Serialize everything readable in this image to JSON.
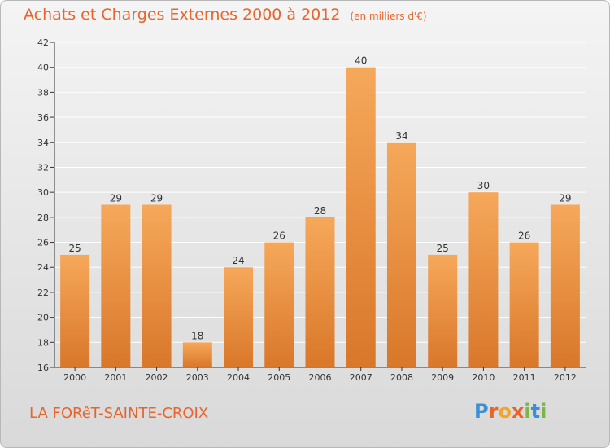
{
  "header": {
    "title": "Achats et Charges Externes 2000 à 2012",
    "unit": "(en milliers d'€)"
  },
  "footer": {
    "commune": "LA FORêT-SAINTE-CROIX",
    "logo": {
      "text": "Proxiti",
      "letter_colors": [
        "#3a8fd6",
        "#e8642a",
        "#f2a42e",
        "#e8642a",
        "#7ab648",
        "#3a8fd6",
        "#7ab648"
      ]
    }
  },
  "colors": {
    "title": "#e8642a",
    "bar_light": "#f6a85a",
    "bar_dark": "#d9772a",
    "axis": "#333333",
    "grid": "#ffffff"
  },
  "chart_data": {
    "type": "bar",
    "title": "Achats et Charges Externes 2000 à 2012",
    "subtitle": "(en milliers d'€)",
    "categories": [
      "2000",
      "2001",
      "2002",
      "2003",
      "2004",
      "2005",
      "2006",
      "2007",
      "2008",
      "2009",
      "2010",
      "2011",
      "2012"
    ],
    "values": [
      25,
      29,
      29,
      18,
      24,
      26,
      28,
      40,
      34,
      25,
      30,
      26,
      29
    ],
    "ylim": [
      16,
      42
    ],
    "yticks": [
      16,
      18,
      20,
      22,
      24,
      26,
      28,
      30,
      32,
      34,
      36,
      38,
      40,
      42
    ],
    "grid": true,
    "data_labels": true
  }
}
